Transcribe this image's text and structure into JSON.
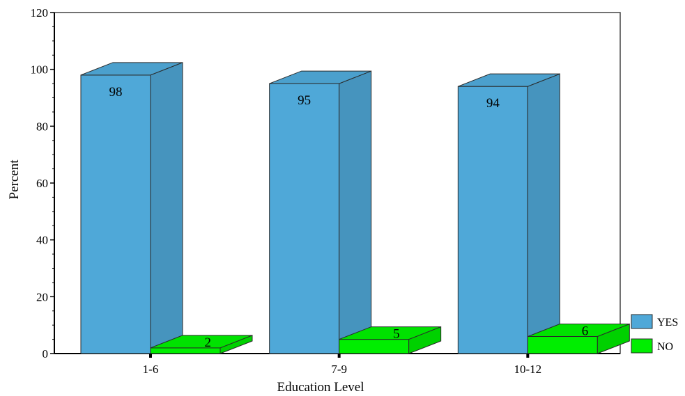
{
  "chart_data": {
    "type": "bar",
    "style": "3d-clustered",
    "title": "",
    "xlabel": "Education Level",
    "ylabel": "Percent",
    "ylim": [
      0,
      120
    ],
    "yticks": [
      0,
      20,
      40,
      60,
      80,
      100,
      120
    ],
    "categories": [
      "1-6",
      "7-9",
      "10-12"
    ],
    "series": [
      {
        "name": "YES",
        "color": "#4fa8d8",
        "values": [
          98,
          95,
          94
        ],
        "data_labels": [
          "98",
          "95",
          "94"
        ]
      },
      {
        "name": "NO",
        "color": "#00ee00",
        "values": [
          2,
          5,
          6
        ],
        "data_labels": [
          "2",
          "5",
          "6"
        ]
      }
    ],
    "legend_position": "bottom-right",
    "grid": false
  }
}
